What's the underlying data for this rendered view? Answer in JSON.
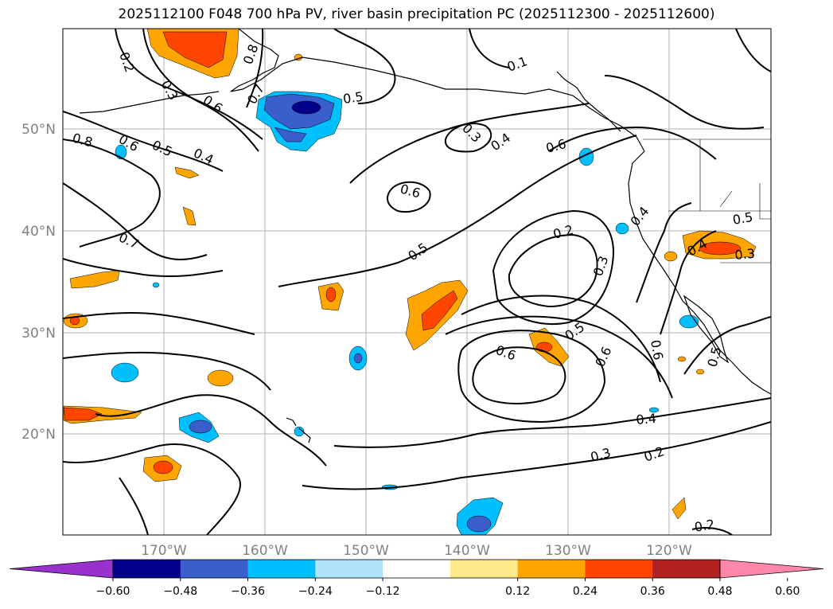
{
  "title": "2025112100 F048 700 hPa PV, river basin precipitation PC (2025112300 - 2025112600)",
  "map": {
    "lat_labels": [
      "50°N",
      "40°N",
      "30°N",
      "20°N"
    ],
    "lon_labels": [
      "170°W",
      "160°W",
      "150°W",
      "140°W",
      "130°W",
      "120°W"
    ],
    "contour_labels": [
      "0.2",
      "0.3",
      "0.8",
      "0.7",
      "0.6",
      "0.5",
      "0.8",
      "0.6",
      "0.5",
      "0.4",
      "0.3",
      "0.4",
      "0.6",
      "0.6",
      "0.7",
      "0.5",
      "0.2",
      "0.3",
      "0.4",
      "0.5",
      "0.4",
      "0.3",
      "0.6",
      "0.5",
      "0.6",
      "0.6",
      "0.4",
      "0.3",
      "0.2",
      "0.2",
      "0.1",
      "0.5"
    ]
  },
  "colorbar": {
    "ticks": [
      "−0.60",
      "−0.48",
      "−0.36",
      "−0.24",
      "−0.12",
      "0.12",
      "0.24",
      "0.36",
      "0.48",
      "0.60"
    ],
    "colors": [
      "#9932cc",
      "#00008b",
      "#3a5fcd",
      "#00bfff",
      "#aee3fa",
      "#ffffff",
      "#ffe98a",
      "#ffa500",
      "#ff4500",
      "#b22222",
      "#ff88aa"
    ]
  }
}
